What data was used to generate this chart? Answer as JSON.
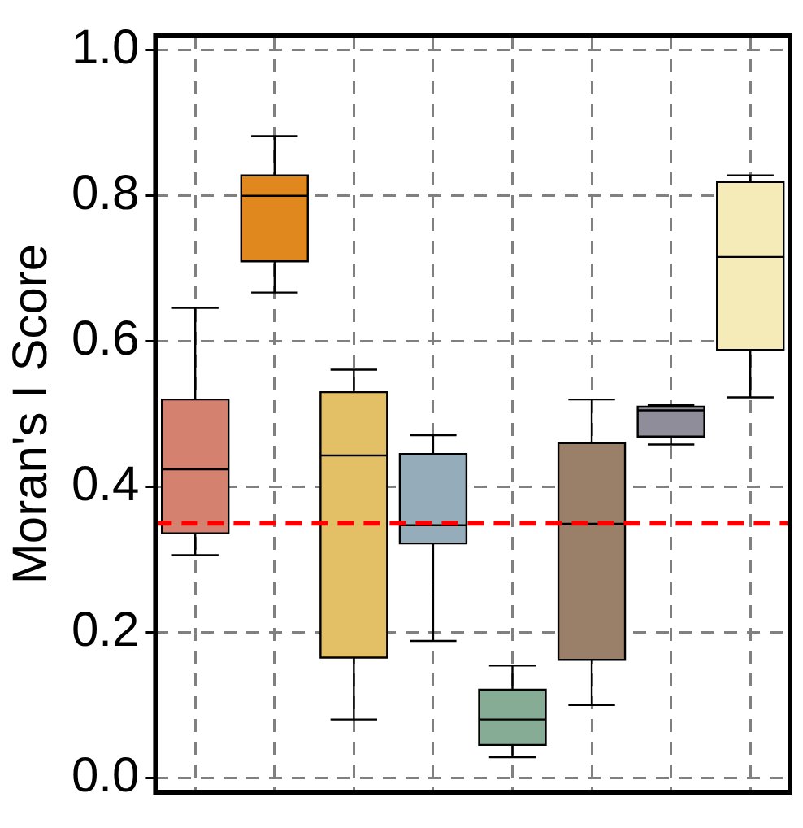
{
  "chart_data": {
    "type": "box",
    "ylabel": "Moran's I Score",
    "categories": [
      null,
      null,
      null,
      null,
      null,
      null,
      null,
      null
    ],
    "boxes": [
      {
        "low": 0.306,
        "q1": 0.336,
        "median": 0.424,
        "q3": 0.52,
        "high": 0.646
      },
      {
        "low": 0.667,
        "q1": 0.71,
        "median": 0.8,
        "q3": 0.828,
        "high": 0.882
      },
      {
        "low": 0.08,
        "q1": 0.165,
        "median": 0.443,
        "q3": 0.53,
        "high": 0.561
      },
      {
        "low": 0.188,
        "q1": 0.322,
        "median": 0.347,
        "q3": 0.445,
        "high": 0.471
      },
      {
        "low": 0.028,
        "q1": 0.045,
        "median": 0.08,
        "q3": 0.121,
        "high": 0.154
      },
      {
        "low": 0.1,
        "q1": 0.162,
        "median": 0.349,
        "q3": 0.46,
        "high": 0.52
      },
      {
        "low": 0.458,
        "q1": 0.469,
        "median": 0.505,
        "q3": 0.51,
        "high": 0.512
      },
      {
        "low": 0.523,
        "q1": 0.588,
        "median": 0.716,
        "q3": 0.819,
        "high": 0.828
      }
    ],
    "colors": [
      "#d4826f",
      "#e0881e",
      "#e3bf66",
      "#95adbb",
      "#87ac96",
      "#9b8069",
      "#8e8d99",
      "#f5ebb9"
    ],
    "ylim": [
      -0.02,
      1.02
    ],
    "yticks": [
      {
        "value": 0,
        "label": "0.0"
      },
      {
        "value": 0.2,
        "label": "0.2"
      },
      {
        "value": 0.4,
        "label": "0.4"
      },
      {
        "value": 0.6,
        "label": "0.6"
      },
      {
        "value": 0.8,
        "label": "0.8"
      },
      {
        "value": 1,
        "label": "1.0"
      }
    ],
    "grid": true,
    "tick_labels": "y",
    "ref_lines": [
      {
        "axis": "y",
        "value": 0.35,
        "color": "#ff0000",
        "line_style": "dashed"
      }
    ]
  }
}
